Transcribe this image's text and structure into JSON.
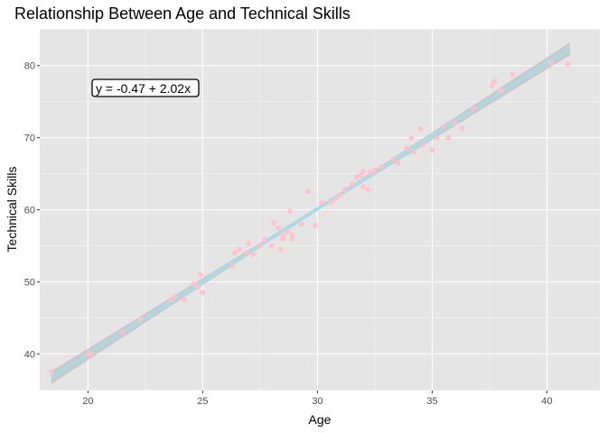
{
  "chart_data": {
    "type": "scatter",
    "title": "Relationship Between Age and Technical Skills",
    "xlabel": "Age",
    "ylabel": "Technical Skills",
    "xlim": [
      17.9,
      42.3
    ],
    "ylim": [
      34.9,
      85.1
    ],
    "x_ticks": [
      20,
      25,
      30,
      35,
      40
    ],
    "y_ticks": [
      40,
      50,
      60,
      70,
      80
    ],
    "grid": true,
    "annotation": "y = -0.47 + 2.02x",
    "fit": {
      "intercept": -0.47,
      "slope": 2.02,
      "x_range": [
        18.4,
        41.0
      ]
    },
    "colors": {
      "panel_background": "#e5e5e5",
      "grid": "#ffffff",
      "points": "#ffc0cb",
      "fit_band": "#b3b3b3",
      "fit_line": "#add8e6"
    },
    "points": [
      [
        18.4,
        37.5
      ],
      [
        20.0,
        40.0
      ],
      [
        20.1,
        40.0
      ],
      [
        21.5,
        43.0
      ],
      [
        22.3,
        44.8
      ],
      [
        23.6,
        47.5
      ],
      [
        23.8,
        48.0
      ],
      [
        24.2,
        47.5
      ],
      [
        24.6,
        49.7
      ],
      [
        24.8,
        49.3
      ],
      [
        24.9,
        51.0
      ],
      [
        25.0,
        48.5
      ],
      [
        26.3,
        52.2
      ],
      [
        26.4,
        54.0
      ],
      [
        26.6,
        54.5
      ],
      [
        26.9,
        54.0
      ],
      [
        27.0,
        55.3
      ],
      [
        27.2,
        53.8
      ],
      [
        27.5,
        55.0
      ],
      [
        27.7,
        55.8
      ],
      [
        28.0,
        55.0
      ],
      [
        28.1,
        58.2
      ],
      [
        28.3,
        57.5
      ],
      [
        28.4,
        54.5
      ],
      [
        28.5,
        56.0
      ],
      [
        28.5,
        56.5
      ],
      [
        28.7,
        57.0
      ],
      [
        28.8,
        59.8
      ],
      [
        28.9,
        56.5
      ],
      [
        28.9,
        56.0
      ],
      [
        29.3,
        58.0
      ],
      [
        29.6,
        62.5
      ],
      [
        29.9,
        57.8
      ],
      [
        30.2,
        61.0
      ],
      [
        30.6,
        61.0
      ],
      [
        30.8,
        61.5
      ],
      [
        31.0,
        62.0
      ],
      [
        31.2,
        62.8
      ],
      [
        31.5,
        63.5
      ],
      [
        31.7,
        64.5
      ],
      [
        31.9,
        64.8
      ],
      [
        32.0,
        65.3
      ],
      [
        32.0,
        63.2
      ],
      [
        32.2,
        62.8
      ],
      [
        32.3,
        65.2
      ],
      [
        32.5,
        65.5
      ],
      [
        32.8,
        66.0
      ],
      [
        33.3,
        67.0
      ],
      [
        33.5,
        66.5
      ],
      [
        33.9,
        68.5
      ],
      [
        34.1,
        70.0
      ],
      [
        34.2,
        68.0
      ],
      [
        34.5,
        71.2
      ],
      [
        34.6,
        69.0
      ],
      [
        35.0,
        68.3
      ],
      [
        35.2,
        70.0
      ],
      [
        35.5,
        71.5
      ],
      [
        35.7,
        70.0
      ],
      [
        36.0,
        72.0
      ],
      [
        36.3,
        71.3
      ],
      [
        36.8,
        74.0
      ],
      [
        37.6,
        77.2
      ],
      [
        37.7,
        77.8
      ],
      [
        38.0,
        76.5
      ],
      [
        38.5,
        78.8
      ],
      [
        40.2,
        80.4
      ],
      [
        40.9,
        80.2
      ]
    ]
  }
}
